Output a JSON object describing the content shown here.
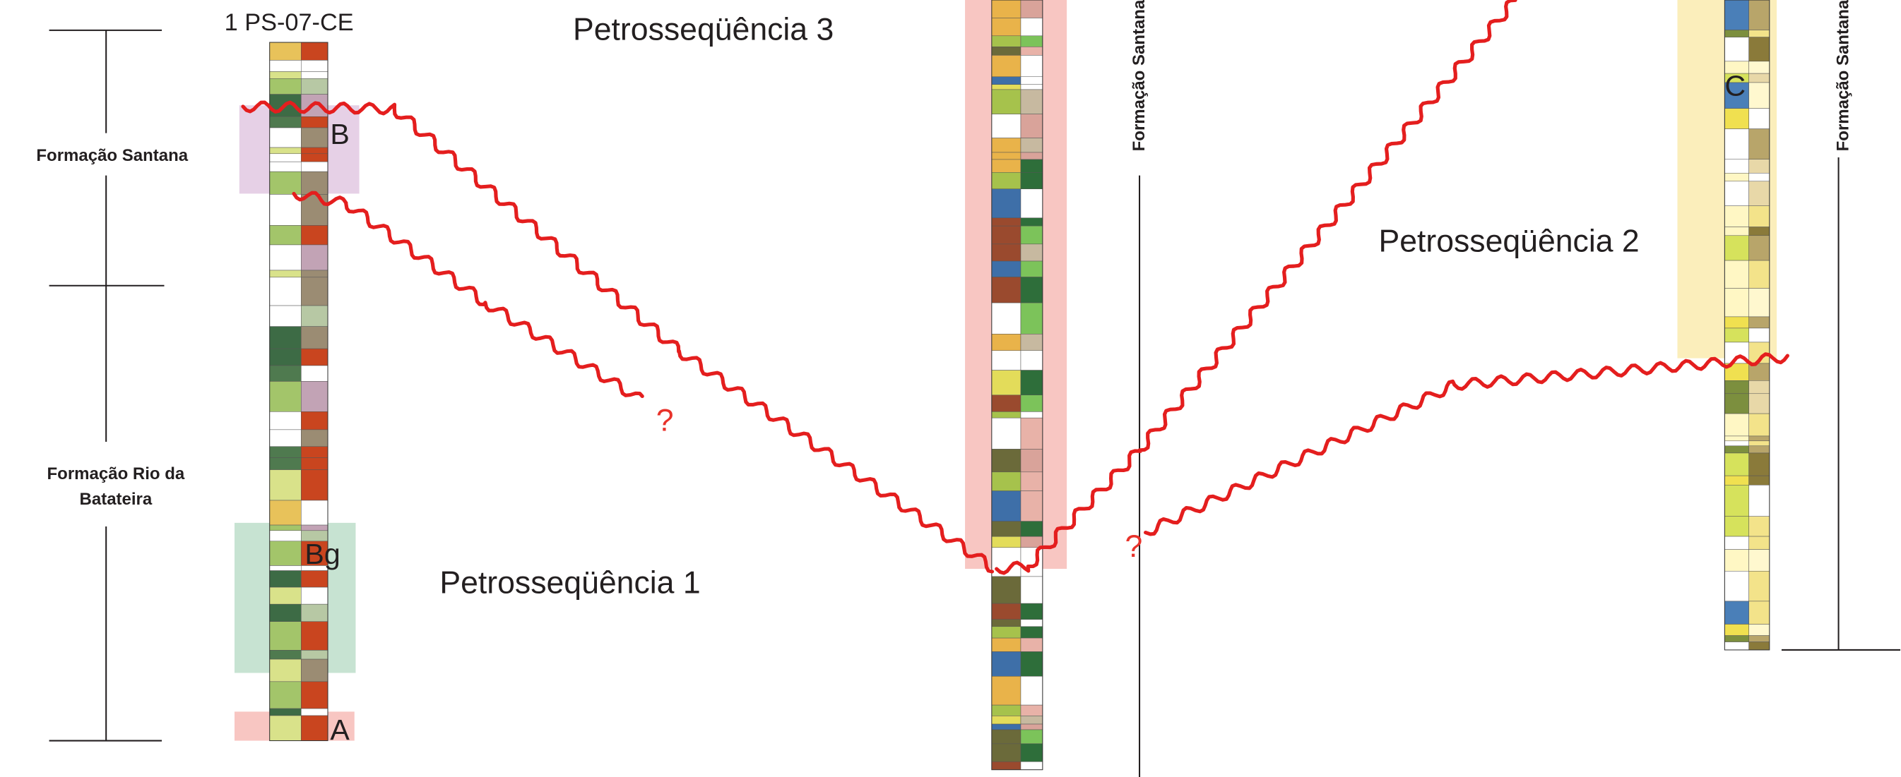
{
  "well": {
    "name": "1 PS-07-CE"
  },
  "formations": {
    "upper_left": "Formação Santana",
    "lower_left": [
      "Formação Rio da",
      "Batateira"
    ],
    "middle_right": "Formação Santana",
    "far_right": "Formação Santana"
  },
  "sequences": {
    "s1": "Petrosseqüência 1",
    "s2": "Petrosseqüência 2",
    "s3": "Petrosseqüência 3"
  },
  "markers": {
    "b": "B",
    "bg": "Bg",
    "a": "A",
    "c": "C"
  },
  "uncertain": {
    "left": "?",
    "right": "?"
  }
}
